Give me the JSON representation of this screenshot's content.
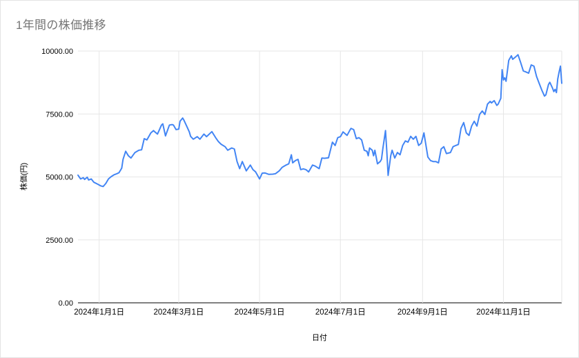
{
  "chart": {
    "title": "1年間の株価推移",
    "xlabel": "日付",
    "ylabel": "株価(円)"
  },
  "colors": {
    "series": "#4285f4",
    "grid": "#e6e6e6",
    "axis": "#333333",
    "title_text": "#757575",
    "tick_text": "#000000",
    "background": "#ffffff"
  },
  "chart_data": {
    "type": "line",
    "title": "1年間の株価推移",
    "xlabel": "日付",
    "ylabel": "株価(円)",
    "legend": "none",
    "grid": true,
    "ylim": [
      0,
      10000
    ],
    "x_range": [
      "2023-12-16",
      "2024-12-15"
    ],
    "y_ticks": [
      {
        "value": 0,
        "label": "0.00"
      },
      {
        "value": 2500,
        "label": "2500.00"
      },
      {
        "value": 5000,
        "label": "5000.00"
      },
      {
        "value": 7500,
        "label": "7500.00"
      },
      {
        "value": 10000,
        "label": "10000.00"
      }
    ],
    "x_ticks": [
      {
        "date": "2024-01-01",
        "label": "2024年1月1日"
      },
      {
        "date": "2024-03-01",
        "label": "2024年3月1日"
      },
      {
        "date": "2024-05-01",
        "label": "2024年5月1日"
      },
      {
        "date": "2024-07-01",
        "label": "2024年7月1日"
      },
      {
        "date": "2024-09-01",
        "label": "2024年9月1日"
      },
      {
        "date": "2024-11-01",
        "label": "2024年11月1日"
      }
    ],
    "points": [
      [
        "2023-12-16",
        5070
      ],
      [
        "2023-12-18",
        4920
      ],
      [
        "2023-12-20",
        4970
      ],
      [
        "2023-12-21",
        4900
      ],
      [
        "2023-12-23",
        4990
      ],
      [
        "2023-12-24",
        4880
      ],
      [
        "2023-12-26",
        4920
      ],
      [
        "2023-12-28",
        4790
      ],
      [
        "2023-12-31",
        4710
      ],
      [
        "2024-01-02",
        4650
      ],
      [
        "2024-01-04",
        4620
      ],
      [
        "2024-01-06",
        4740
      ],
      [
        "2024-01-08",
        4920
      ],
      [
        "2024-01-10",
        5010
      ],
      [
        "2024-01-12",
        5080
      ],
      [
        "2024-01-14",
        5120
      ],
      [
        "2024-01-16",
        5170
      ],
      [
        "2024-01-18",
        5350
      ],
      [
        "2024-01-19",
        5700
      ],
      [
        "2024-01-21",
        6020
      ],
      [
        "2024-01-23",
        5840
      ],
      [
        "2024-01-25",
        5750
      ],
      [
        "2024-01-28",
        5970
      ],
      [
        "2024-01-31",
        6060
      ],
      [
        "2024-02-02",
        6080
      ],
      [
        "2024-02-04",
        6520
      ],
      [
        "2024-02-06",
        6470
      ],
      [
        "2024-02-09",
        6750
      ],
      [
        "2024-02-11",
        6840
      ],
      [
        "2024-02-12",
        6790
      ],
      [
        "2024-02-14",
        6700
      ],
      [
        "2024-02-17",
        7060
      ],
      [
        "2024-02-18",
        7110
      ],
      [
        "2024-02-20",
        6630
      ],
      [
        "2024-02-23",
        7060
      ],
      [
        "2024-02-25",
        7080
      ],
      [
        "2024-02-26",
        7060
      ],
      [
        "2024-02-28",
        6880
      ],
      [
        "2024-03-01",
        6900
      ],
      [
        "2024-03-02",
        7210
      ],
      [
        "2024-03-04",
        7340
      ],
      [
        "2024-03-05",
        7250
      ],
      [
        "2024-03-07",
        7020
      ],
      [
        "2024-03-09",
        6790
      ],
      [
        "2024-03-10",
        6610
      ],
      [
        "2024-03-12",
        6500
      ],
      [
        "2024-03-15",
        6600
      ],
      [
        "2024-03-17",
        6500
      ],
      [
        "2024-03-20",
        6700
      ],
      [
        "2024-03-22",
        6600
      ],
      [
        "2024-03-26",
        6800
      ],
      [
        "2024-03-29",
        6550
      ],
      [
        "2024-03-31",
        6400
      ],
      [
        "2024-04-02",
        6300
      ],
      [
        "2024-04-05",
        6200
      ],
      [
        "2024-04-07",
        6060
      ],
      [
        "2024-04-10",
        6150
      ],
      [
        "2024-04-12",
        6110
      ],
      [
        "2024-04-14",
        5610
      ],
      [
        "2024-04-16",
        5330
      ],
      [
        "2024-04-18",
        5610
      ],
      [
        "2024-04-21",
        5240
      ],
      [
        "2024-04-24",
        5470
      ],
      [
        "2024-04-26",
        5290
      ],
      [
        "2024-04-28",
        5200
      ],
      [
        "2024-05-01",
        4920
      ],
      [
        "2024-05-03",
        5150
      ],
      [
        "2024-05-05",
        5160
      ],
      [
        "2024-05-08",
        5100
      ],
      [
        "2024-05-11",
        5110
      ],
      [
        "2024-05-13",
        5130
      ],
      [
        "2024-05-16",
        5250
      ],
      [
        "2024-05-18",
        5380
      ],
      [
        "2024-05-21",
        5470
      ],
      [
        "2024-05-23",
        5520
      ],
      [
        "2024-05-25",
        5880
      ],
      [
        "2024-05-26",
        5560
      ],
      [
        "2024-05-28",
        5650
      ],
      [
        "2024-05-30",
        5700
      ],
      [
        "2024-06-01",
        5290
      ],
      [
        "2024-06-03",
        5320
      ],
      [
        "2024-06-05",
        5290
      ],
      [
        "2024-06-07",
        5200
      ],
      [
        "2024-06-10",
        5470
      ],
      [
        "2024-06-12",
        5430
      ],
      [
        "2024-06-15",
        5330
      ],
      [
        "2024-06-17",
        5750
      ],
      [
        "2024-06-19",
        5740
      ],
      [
        "2024-06-22",
        5760
      ],
      [
        "2024-06-25",
        6380
      ],
      [
        "2024-06-27",
        6250
      ],
      [
        "2024-06-29",
        6560
      ],
      [
        "2024-07-01",
        6600
      ],
      [
        "2024-07-03",
        6790
      ],
      [
        "2024-07-06",
        6650
      ],
      [
        "2024-07-08",
        6840
      ],
      [
        "2024-07-09",
        6930
      ],
      [
        "2024-07-11",
        6880
      ],
      [
        "2024-07-13",
        6520
      ],
      [
        "2024-07-15",
        6560
      ],
      [
        "2024-07-17",
        6470
      ],
      [
        "2024-07-19",
        6060
      ],
      [
        "2024-07-21",
        6020
      ],
      [
        "2024-07-22",
        5840
      ],
      [
        "2024-07-23",
        6150
      ],
      [
        "2024-07-25",
        6060
      ],
      [
        "2024-07-26",
        5840
      ],
      [
        "2024-07-27",
        6060
      ],
      [
        "2024-07-29",
        5520
      ],
      [
        "2024-07-31",
        5610
      ],
      [
        "2024-08-01",
        5700
      ],
      [
        "2024-08-02",
        6110
      ],
      [
        "2024-08-04",
        6840
      ],
      [
        "2024-08-05",
        6020
      ],
      [
        "2024-08-06",
        5060
      ],
      [
        "2024-08-08",
        5840
      ],
      [
        "2024-08-09",
        6060
      ],
      [
        "2024-08-11",
        5750
      ],
      [
        "2024-08-13",
        5970
      ],
      [
        "2024-08-15",
        5880
      ],
      [
        "2024-08-17",
        6250
      ],
      [
        "2024-08-19",
        6430
      ],
      [
        "2024-08-21",
        6380
      ],
      [
        "2024-08-23",
        6610
      ],
      [
        "2024-08-25",
        6500
      ],
      [
        "2024-08-27",
        6610
      ],
      [
        "2024-08-29",
        6250
      ],
      [
        "2024-08-31",
        6340
      ],
      [
        "2024-09-02",
        6750
      ],
      [
        "2024-09-05",
        5790
      ],
      [
        "2024-09-07",
        5650
      ],
      [
        "2024-09-09",
        5610
      ],
      [
        "2024-09-11",
        5610
      ],
      [
        "2024-09-13",
        5560
      ],
      [
        "2024-09-15",
        6110
      ],
      [
        "2024-09-17",
        6200
      ],
      [
        "2024-09-19",
        5930
      ],
      [
        "2024-09-22",
        5970
      ],
      [
        "2024-09-24",
        6200
      ],
      [
        "2024-09-26",
        6250
      ],
      [
        "2024-09-28",
        6290
      ],
      [
        "2024-09-30",
        6930
      ],
      [
        "2024-10-02",
        7160
      ],
      [
        "2024-10-04",
        6750
      ],
      [
        "2024-10-06",
        6650
      ],
      [
        "2024-10-08",
        7020
      ],
      [
        "2024-10-10",
        7210
      ],
      [
        "2024-10-12",
        7020
      ],
      [
        "2024-10-14",
        7480
      ],
      [
        "2024-10-16",
        7620
      ],
      [
        "2024-10-18",
        7480
      ],
      [
        "2024-10-20",
        7890
      ],
      [
        "2024-10-22",
        8000
      ],
      [
        "2024-10-23",
        7940
      ],
      [
        "2024-10-25",
        8030
      ],
      [
        "2024-10-27",
        7840
      ],
      [
        "2024-10-28",
        7890
      ],
      [
        "2024-10-30",
        8120
      ],
      [
        "2024-10-31",
        9260
      ],
      [
        "2024-11-01",
        8850
      ],
      [
        "2024-11-02",
        8940
      ],
      [
        "2024-11-03",
        8800
      ],
      [
        "2024-11-05",
        9630
      ],
      [
        "2024-11-07",
        9810
      ],
      [
        "2024-11-08",
        9670
      ],
      [
        "2024-11-10",
        9760
      ],
      [
        "2024-11-12",
        9855
      ],
      [
        "2024-11-14",
        9540
      ],
      [
        "2024-11-16",
        9210
      ],
      [
        "2024-11-18",
        9170
      ],
      [
        "2024-11-20",
        9120
      ],
      [
        "2024-11-22",
        9450
      ],
      [
        "2024-11-24",
        9400
      ],
      [
        "2024-11-26",
        8990
      ],
      [
        "2024-11-28",
        8710
      ],
      [
        "2024-11-30",
        8440
      ],
      [
        "2024-12-02",
        8210
      ],
      [
        "2024-12-03",
        8260
      ],
      [
        "2024-12-05",
        8670
      ],
      [
        "2024-12-06",
        8760
      ],
      [
        "2024-12-08",
        8530
      ],
      [
        "2024-12-09",
        8390
      ],
      [
        "2024-12-10",
        8480
      ],
      [
        "2024-12-11",
        8350
      ],
      [
        "2024-12-12",
        8890
      ],
      [
        "2024-12-13",
        9170
      ],
      [
        "2024-12-14",
        9400
      ],
      [
        "2024-12-15",
        8720
      ]
    ]
  }
}
